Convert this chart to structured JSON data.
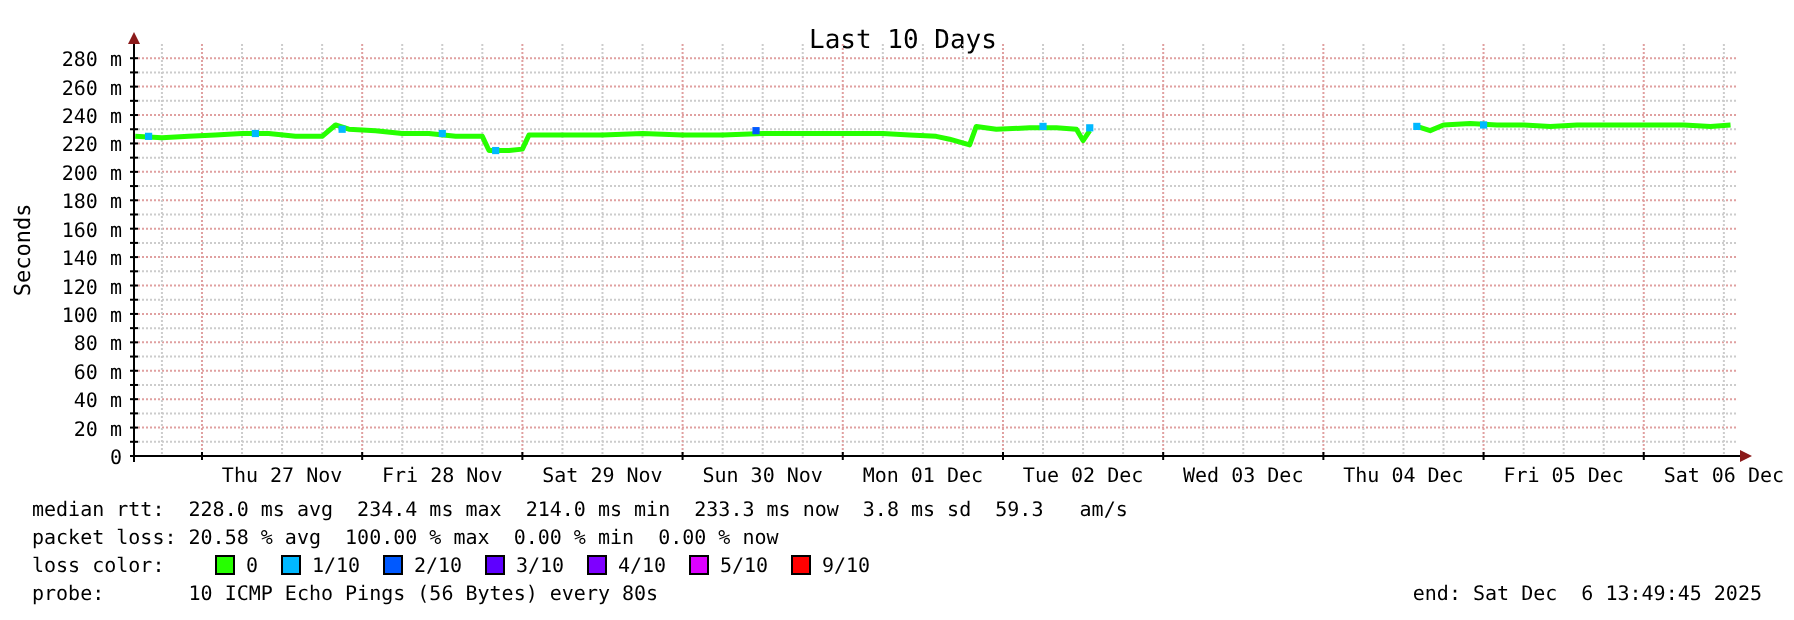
{
  "chart_data": {
    "type": "line",
    "title": "Last 10 Days",
    "ylabel": "Seconds",
    "legend_title": "loss color:",
    "legend": "bottom",
    "grid": true,
    "xlim": [
      "2025-11-26T13:49",
      "2025-12-06T13:49"
    ],
    "ylim": [
      0,
      290
    ],
    "yticks": [
      {
        "value": 0,
        "label": "0"
      },
      {
        "value": 10,
        "label": null
      },
      {
        "value": 20,
        "label": "20 m"
      },
      {
        "value": 30,
        "label": null
      },
      {
        "value": 40,
        "label": "40 m"
      },
      {
        "value": 50,
        "label": null
      },
      {
        "value": 60,
        "label": "60 m"
      },
      {
        "value": 70,
        "label": null
      },
      {
        "value": 80,
        "label": "80 m"
      },
      {
        "value": 90,
        "label": null
      },
      {
        "value": 100,
        "label": "100 m"
      },
      {
        "value": 110,
        "label": null
      },
      {
        "value": 120,
        "label": "120 m"
      },
      {
        "value": 130,
        "label": null
      },
      {
        "value": 140,
        "label": "140 m"
      },
      {
        "value": 150,
        "label": null
      },
      {
        "value": 160,
        "label": "160 m"
      },
      {
        "value": 170,
        "label": null
      },
      {
        "value": 180,
        "label": "180 m"
      },
      {
        "value": 190,
        "label": null
      },
      {
        "value": 200,
        "label": "200 m"
      },
      {
        "value": 210,
        "label": null
      },
      {
        "value": 220,
        "label": "220 m"
      },
      {
        "value": 230,
        "label": null
      },
      {
        "value": 240,
        "label": "240 m"
      },
      {
        "value": 250,
        "label": null
      },
      {
        "value": 260,
        "label": "260 m"
      },
      {
        "value": 270,
        "label": null
      },
      {
        "value": 280,
        "label": "280 m"
      }
    ],
    "xticks": [
      {
        "value": "2025-11-26T18:00",
        "label": null
      },
      {
        "value": "2025-11-27T00:00",
        "label": null
      },
      {
        "value": "2025-11-27T06:00",
        "label": null
      },
      {
        "value": "2025-11-27T12:00",
        "label": "Thu 27 Nov"
      },
      {
        "value": "2025-11-27T18:00",
        "label": null
      },
      {
        "value": "2025-11-28T00:00",
        "label": null
      },
      {
        "value": "2025-11-28T06:00",
        "label": null
      },
      {
        "value": "2025-11-28T12:00",
        "label": "Fri 28 Nov"
      },
      {
        "value": "2025-11-28T18:00",
        "label": null
      },
      {
        "value": "2025-11-29T00:00",
        "label": null
      },
      {
        "value": "2025-11-29T06:00",
        "label": null
      },
      {
        "value": "2025-11-29T12:00",
        "label": "Sat 29 Nov"
      },
      {
        "value": "2025-11-29T18:00",
        "label": null
      },
      {
        "value": "2025-11-30T00:00",
        "label": null
      },
      {
        "value": "2025-11-30T06:00",
        "label": null
      },
      {
        "value": "2025-11-30T12:00",
        "label": "Sun 30 Nov"
      },
      {
        "value": "2025-11-30T18:00",
        "label": null
      },
      {
        "value": "2025-12-01T00:00",
        "label": null
      },
      {
        "value": "2025-12-01T06:00",
        "label": null
      },
      {
        "value": "2025-12-01T12:00",
        "label": "Mon 01 Dec"
      },
      {
        "value": "2025-12-01T18:00",
        "label": null
      },
      {
        "value": "2025-12-02T00:00",
        "label": null
      },
      {
        "value": "2025-12-02T06:00",
        "label": null
      },
      {
        "value": "2025-12-02T12:00",
        "label": "Tue 02 Dec"
      },
      {
        "value": "2025-12-02T18:00",
        "label": null
      },
      {
        "value": "2025-12-03T00:00",
        "label": null
      },
      {
        "value": "2025-12-03T06:00",
        "label": null
      },
      {
        "value": "2025-12-03T12:00",
        "label": "Wed 03 Dec"
      },
      {
        "value": "2025-12-03T18:00",
        "label": null
      },
      {
        "value": "2025-12-04T00:00",
        "label": null
      },
      {
        "value": "2025-12-04T06:00",
        "label": null
      },
      {
        "value": "2025-12-04T12:00",
        "label": "Thu 04 Dec"
      },
      {
        "value": "2025-12-04T18:00",
        "label": null
      },
      {
        "value": "2025-12-05T00:00",
        "label": null
      },
      {
        "value": "2025-12-05T06:00",
        "label": null
      },
      {
        "value": "2025-12-05T12:00",
        "label": "Fri 05 Dec"
      },
      {
        "value": "2025-12-05T18:00",
        "label": null
      },
      {
        "value": "2025-12-06T00:00",
        "label": null
      },
      {
        "value": "2025-12-06T06:00",
        "label": null
      },
      {
        "value": "2025-12-06T12:00",
        "label": "Sat 06 Dec"
      }
    ],
    "series": [
      {
        "name": "0",
        "color": "#26ff00",
        "x": [
          "2025-11-26T14:00",
          "2025-11-26T18:00",
          "2025-11-26T22:00",
          "2025-11-27T02:00",
          "2025-11-27T06:00",
          "2025-11-27T10:00",
          "2025-11-27T14:00",
          "2025-11-27T18:00",
          "2025-11-27T20:00",
          "2025-11-27T22:00",
          "2025-11-28T02:00",
          "2025-11-28T06:00",
          "2025-11-28T10:00",
          "2025-11-28T14:00",
          "2025-11-28T18:00",
          "2025-11-28T19:00",
          "2025-11-28T22:00",
          "2025-11-29T00:00",
          "2025-11-29T01:00",
          "2025-11-29T06:00",
          "2025-11-29T12:00",
          "2025-11-29T18:00",
          "2025-11-30T00:00",
          "2025-11-30T06:00",
          "2025-11-30T12:00",
          "2025-11-30T18:00",
          "2025-12-01T00:00",
          "2025-12-01T06:00",
          "2025-12-01T10:00",
          "2025-12-01T14:00",
          "2025-12-01T16:00",
          "2025-12-01T19:00",
          "2025-12-01T20:00",
          "2025-12-01T23:00",
          "2025-12-02T04:00",
          "2025-12-02T08:00",
          "2025-12-02T11:00",
          "2025-12-02T12:00",
          "2025-12-02T13:00",
          "2025-12-02T14:00",
          "2025-12-04T14:00",
          "2025-12-04T16:00",
          "2025-12-04T18:00",
          "2025-12-04T22:00",
          "2025-12-05T02:00",
          "2025-12-05T06:00",
          "2025-12-05T10:00",
          "2025-12-05T14:00",
          "2025-12-05T18:00",
          "2025-12-05T22:00",
          "2025-12-06T02:00",
          "2025-12-06T06:00",
          "2025-12-06T10:00",
          "2025-12-06T13:00"
        ],
        "values": [
          225,
          224,
          225,
          226,
          227,
          227,
          225,
          225,
          233,
          230,
          229,
          227,
          227,
          225,
          225,
          215,
          215,
          216,
          226,
          226,
          226,
          227,
          226,
          226,
          227,
          227,
          227,
          227,
          226,
          225,
          223,
          219,
          232,
          230,
          231,
          231,
          230,
          222,
          229,
          null,
          232,
          229,
          233,
          234,
          233,
          233,
          232,
          233,
          233,
          233,
          233,
          233,
          232,
          233
        ]
      },
      {
        "name": "1/10",
        "type": "scatter",
        "marker": "square",
        "color": "#00b8ff",
        "x": [
          "2025-11-26T16:00",
          "2025-11-27T08:00",
          "2025-11-27T21:00",
          "2025-11-28T12:00",
          "2025-11-28T20:00",
          "2025-12-02T06:00",
          "2025-12-02T13:00",
          "2025-12-04T14:00",
          "2025-12-05T00:00"
        ],
        "values": [
          225,
          227,
          230,
          227,
          215,
          232,
          231,
          232,
          233
        ]
      },
      {
        "name": "2/10",
        "type": "scatter",
        "marker": "square",
        "color": "#0059ff",
        "x": [
          "2025-11-30T11:00"
        ],
        "values": [
          229
        ]
      },
      {
        "name": "3/10",
        "type": "scatter",
        "marker": "square",
        "color": "#5e00ff"
      },
      {
        "name": "4/10",
        "type": "scatter",
        "marker": "square",
        "color": "#7e00ff"
      },
      {
        "name": "5/10",
        "type": "scatter",
        "marker": "square",
        "color": "#dd00ff"
      },
      {
        "name": "9/10",
        "type": "scatter",
        "marker": "square",
        "color": "#ff0000"
      }
    ],
    "annotations": [
      "median rtt:  228.0 ms avg  234.4 ms max  214.0 ms min  233.3 ms now  3.8 ms sd  59.3   am/s",
      "packet loss: 20.58 % avg  100.00 % max  0.00 % min  0.00 % now",
      "probe:       10 ICMP Echo Pings (56 Bytes) every 80s",
      "end: Sat Dec  6 13:49:45 2025"
    ]
  }
}
